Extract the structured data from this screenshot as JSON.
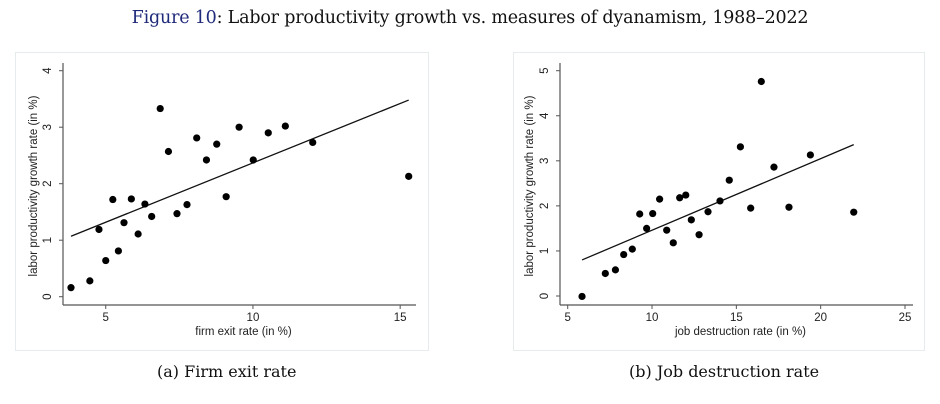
{
  "figure": {
    "number_label": "Figure 10",
    "title_rest": ": Labor productivity growth vs. measures of dyanamism, 1988–2022"
  },
  "captions": {
    "a": "(a) Firm exit rate",
    "b": "(b) Job destruction rate"
  },
  "colors": {
    "figure_number": "#1f2a7a",
    "points": "#000000",
    "fit_line": "#111111",
    "axis": "#555555"
  },
  "chart_data": [
    {
      "type": "scatter",
      "title": "(a) Firm exit rate",
      "xlabel": "firm exit rate (in %)",
      "ylabel": "labor productivity growth rate (in %)",
      "xlim": [
        3.5,
        15.6
      ],
      "ylim": [
        -0.15,
        4.1
      ],
      "xticks": [
        5,
        10,
        15
      ],
      "yticks": [
        0,
        1,
        2,
        3,
        4
      ],
      "grid": false,
      "legend": "none",
      "points": [
        [
          3.82,
          0.16
        ],
        [
          4.46,
          0.28
        ],
        [
          4.77,
          1.19
        ],
        [
          5.0,
          0.64
        ],
        [
          5.24,
          1.72
        ],
        [
          5.43,
          0.81
        ],
        [
          5.62,
          1.31
        ],
        [
          5.87,
          1.73
        ],
        [
          6.1,
          1.11
        ],
        [
          6.33,
          1.64
        ],
        [
          6.56,
          1.42
        ],
        [
          6.85,
          3.33
        ],
        [
          7.13,
          2.57
        ],
        [
          7.42,
          1.47
        ],
        [
          7.76,
          1.63
        ],
        [
          8.09,
          2.81
        ],
        [
          8.42,
          2.42
        ],
        [
          8.77,
          2.7
        ],
        [
          9.09,
          1.77
        ],
        [
          9.53,
          3.0
        ],
        [
          10.01,
          2.42
        ],
        [
          10.52,
          2.9
        ],
        [
          11.1,
          3.02
        ],
        [
          12.03,
          2.73
        ],
        [
          15.29,
          2.13
        ]
      ],
      "fit_line": [
        [
          3.82,
          1.07
        ],
        [
          15.29,
          3.48
        ]
      ]
    },
    {
      "type": "scatter",
      "title": "(b) Job destruction rate",
      "xlabel": "job destruction rate (in %)",
      "ylabel": "labor productivity growth rate (in %)",
      "xlim": [
        4.6,
        25.4
      ],
      "ylim": [
        -0.17,
        5.15
      ],
      "xticks": [
        5,
        10,
        15,
        20,
        25
      ],
      "yticks": [
        0,
        1,
        2,
        3,
        4,
        5
      ],
      "grid": false,
      "legend": "none",
      "points": [
        [
          5.85,
          -0.01
        ],
        [
          7.23,
          0.5
        ],
        [
          7.83,
          0.58
        ],
        [
          8.32,
          0.92
        ],
        [
          8.83,
          1.04
        ],
        [
          9.27,
          1.82
        ],
        [
          9.68,
          1.5
        ],
        [
          10.04,
          1.83
        ],
        [
          10.45,
          2.15
        ],
        [
          10.87,
          1.46
        ],
        [
          11.26,
          1.18
        ],
        [
          11.64,
          2.18
        ],
        [
          12.0,
          2.24
        ],
        [
          12.33,
          1.69
        ],
        [
          12.79,
          1.36
        ],
        [
          13.32,
          1.87
        ],
        [
          14.03,
          2.11
        ],
        [
          14.58,
          2.57
        ],
        [
          15.24,
          3.31
        ],
        [
          15.85,
          1.95
        ],
        [
          16.48,
          4.76
        ],
        [
          17.23,
          2.86
        ],
        [
          18.12,
          1.97
        ],
        [
          19.39,
          3.13
        ],
        [
          21.96,
          1.86
        ]
      ],
      "fit_line": [
        [
          5.85,
          0.8
        ],
        [
          21.96,
          3.36
        ]
      ]
    }
  ]
}
